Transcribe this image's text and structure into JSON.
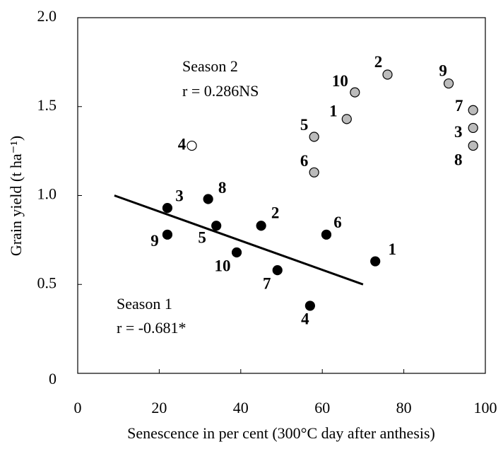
{
  "chart_data": {
    "type": "scatter",
    "x_label": "Senescence in per cent (300°C day after anthesis)",
    "y_label": "Grain yield (t ha⁻¹)",
    "xlim": [
      0,
      100
    ],
    "xticks": [
      0,
      20,
      40,
      60,
      80,
      100
    ],
    "ylim": [
      0,
      2
    ],
    "yticks": [
      0,
      0.5,
      {
        "value": 1,
        "label": "1.0"
      },
      1.5,
      {
        "value": 2,
        "label": "2.0"
      }
    ],
    "grid": false,
    "series": [
      {
        "name": "Season 1",
        "annotation": "r = -0.681*",
        "color": "#000000",
        "labels": [
          "9",
          "3",
          "8",
          "5",
          "10",
          "2",
          "7",
          "4",
          "6",
          "1"
        ],
        "x": [
          22,
          22,
          32,
          34,
          39,
          45,
          49,
          57,
          61,
          73
        ],
        "y": [
          0.78,
          0.93,
          0.98,
          0.83,
          0.68,
          0.83,
          0.58,
          0.38,
          0.78,
          0.63
        ],
        "fit_line": {
          "x": [
            9,
            70
          ],
          "y": [
            1.0,
            0.5
          ]
        }
      },
      {
        "name": "Season 2",
        "annotation": "r = 0.286NS",
        "color": "#bbbbbb",
        "labels": [
          "4",
          "5",
          "6",
          "1",
          "10",
          "2",
          "9",
          "7",
          "3",
          "8"
        ],
        "colors": [
          "#ffffff",
          "#bbbbbb",
          "#bbbbbb",
          "#bbbbbb",
          "#bbbbbb",
          "#bbbbbb",
          "#bbbbbb",
          "#bbbbbb",
          "#bbbbbb",
          "#bbbbbb"
        ],
        "x": [
          28,
          58,
          58,
          66,
          68,
          76,
          91,
          97,
          97,
          97
        ],
        "y": [
          1.28,
          1.33,
          1.13,
          1.43,
          1.58,
          1.68,
          1.63,
          1.48,
          1.38,
          1.28
        ]
      }
    ]
  }
}
